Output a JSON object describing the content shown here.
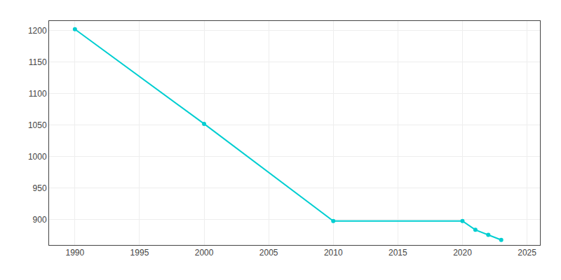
{
  "chart_data": {
    "type": "line",
    "x": [
      1990,
      2000,
      2010,
      2020,
      2021,
      2022,
      2023
    ],
    "values": [
      1202,
      1052,
      898,
      898,
      884,
      876,
      868
    ],
    "color": "#00CED1",
    "marker": "circle",
    "xlim": [
      1988,
      2026
    ],
    "ylim": [
      860,
      1215
    ],
    "xticks": [
      1990,
      1995,
      2000,
      2005,
      2010,
      2015,
      2020,
      2025
    ],
    "yticks": [
      900,
      950,
      1000,
      1050,
      1100,
      1150,
      1200
    ],
    "grid": true
  }
}
